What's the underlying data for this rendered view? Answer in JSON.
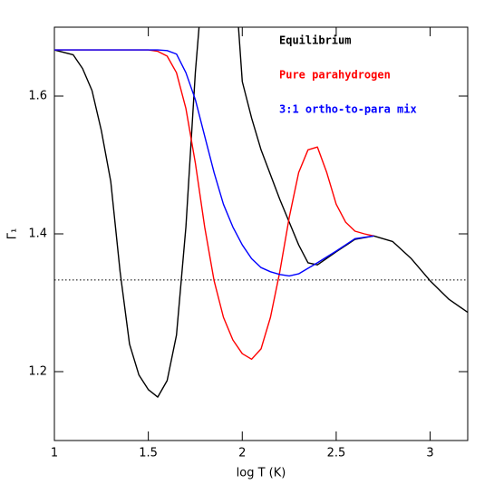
{
  "chart_data": {
    "type": "line",
    "xlabel": "log T (K)",
    "ylabel": "Γ₁",
    "xlim": [
      1,
      3.2
    ],
    "ylim": [
      1.1,
      1.7
    ],
    "xticks": [
      1,
      1.5,
      2,
      2.5,
      3
    ],
    "yticks": [
      1.2,
      1.4,
      1.6
    ],
    "reference_line": 1.333,
    "series": [
      {
        "name": "Equilibrium",
        "color": "#000000",
        "x": [
          1,
          1.1,
          1.15,
          1.2,
          1.25,
          1.3,
          1.35,
          1.4,
          1.45,
          1.5,
          1.55,
          1.6,
          1.65,
          1.7,
          1.75,
          1.77,
          1.85,
          1.98,
          2.0,
          2.05,
          2.1,
          2.2,
          2.3,
          2.35,
          2.4,
          2.5,
          2.6,
          2.7,
          2.8,
          2.9,
          3.0,
          3.1,
          3.2
        ],
        "values": [
          1.667,
          1.66,
          1.64,
          1.608,
          1.55,
          1.476,
          1.345,
          1.24,
          1.195,
          1.174,
          1.163,
          1.187,
          1.253,
          1.41,
          1.634,
          1.7,
          null,
          1.7,
          1.621,
          1.568,
          1.522,
          1.45,
          1.384,
          1.358,
          1.355,
          1.374,
          1.392,
          1.397,
          1.389,
          1.364,
          1.332,
          1.305,
          1.286
        ]
      },
      {
        "name": "Pure parahydrogen",
        "color": "#ff0000",
        "x": [
          1,
          1.5,
          1.55,
          1.6,
          1.65,
          1.7,
          1.75,
          1.8,
          1.85,
          1.9,
          1.95,
          2.0,
          2.05,
          2.1,
          2.15,
          2.2,
          2.25,
          2.3,
          2.35,
          2.4,
          2.45,
          2.5,
          2.55,
          2.6,
          2.65,
          2.7
        ],
        "values": [
          1.667,
          1.667,
          1.665,
          1.658,
          1.634,
          1.582,
          1.503,
          1.41,
          1.332,
          1.279,
          1.246,
          1.226,
          1.218,
          1.233,
          1.279,
          1.345,
          1.424,
          1.489,
          1.522,
          1.526,
          1.489,
          1.443,
          1.417,
          1.404,
          1.4,
          1.397
        ]
      },
      {
        "name": "3:1 ortho-to-para mix",
        "color": "#0000ff",
        "x": [
          1,
          1.55,
          1.6,
          1.65,
          1.7,
          1.75,
          1.8,
          1.85,
          1.9,
          1.95,
          2.0,
          2.05,
          2.1,
          2.15,
          2.2,
          2.25,
          2.3,
          2.35,
          2.4,
          2.5,
          2.6,
          2.7
        ],
        "values": [
          1.667,
          1.667,
          1.666,
          1.661,
          1.634,
          1.595,
          1.542,
          1.489,
          1.443,
          1.41,
          1.384,
          1.364,
          1.351,
          1.345,
          1.341,
          1.339,
          1.342,
          1.35,
          1.358,
          1.375,
          1.393,
          1.397
        ]
      }
    ]
  }
}
